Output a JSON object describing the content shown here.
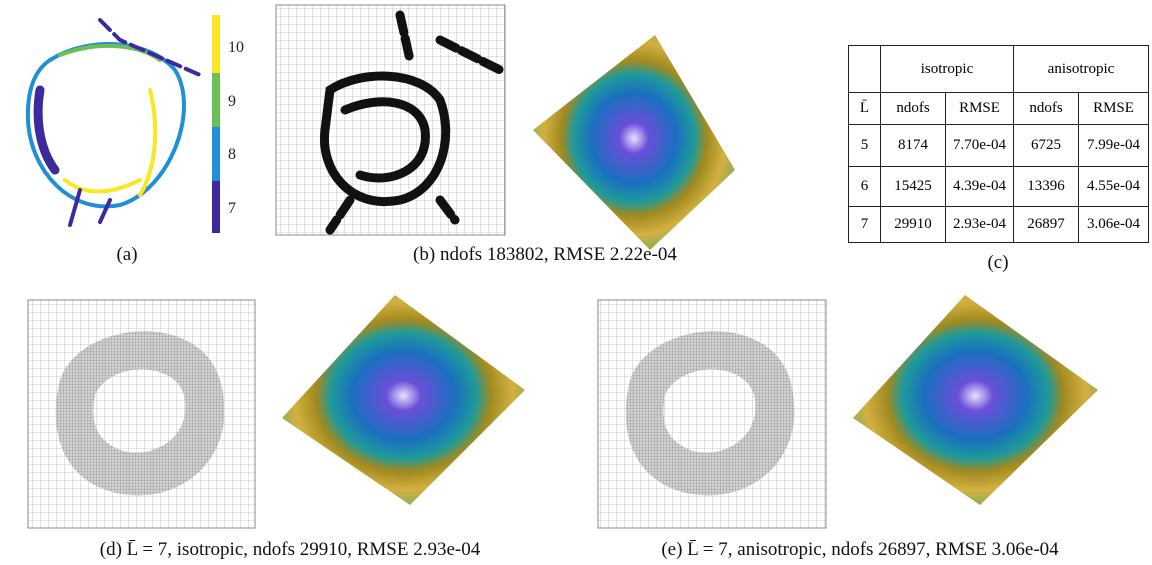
{
  "panels": {
    "a": {
      "caption": "(a)",
      "colorbar_ticks": [
        "10",
        "9",
        "8",
        "7"
      ]
    },
    "b": {
      "caption": "(b) ndofs 183802, RMSE 2.22e-04"
    },
    "c": {
      "caption": "(c)",
      "table": {
        "group_header": [
          "isotropic",
          "anisotropic"
        ],
        "header": [
          "L̄",
          "ndofs",
          "RMSE",
          "ndofs",
          "RMSE"
        ],
        "rows": [
          [
            "5",
            "8174",
            "7.70e-04",
            "6725",
            "7.99e-04"
          ],
          [
            "6",
            "15425",
            "4.39e-04",
            "13396",
            "4.55e-04"
          ],
          [
            "7",
            "29910",
            "2.93e-04",
            "26897",
            "3.06e-04"
          ]
        ]
      }
    },
    "d": {
      "caption": "(d) L̄ = 7, isotropic, ndofs 29910, RMSE 2.93e-04"
    },
    "e": {
      "caption": "(e) L̄ = 7, anisotropic, ndofs 26897, RMSE 3.06e-04"
    }
  }
}
